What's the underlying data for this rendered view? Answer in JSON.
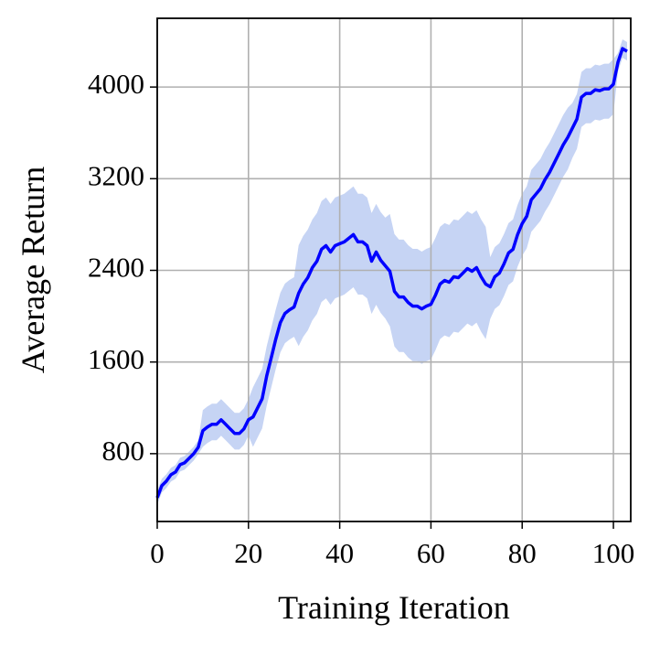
{
  "chart_data": {
    "type": "line",
    "xlabel": "Training Iteration",
    "ylabel": "Average Return",
    "x": [
      0,
      1,
      2,
      3,
      4,
      5,
      6,
      7,
      8,
      9,
      10,
      11,
      12,
      13,
      14,
      15,
      16,
      17,
      18,
      19,
      20,
      21,
      22,
      23,
      24,
      25,
      26,
      27,
      28,
      29,
      30,
      31,
      32,
      33,
      34,
      35,
      36,
      37,
      38,
      39,
      40,
      41,
      42,
      43,
      44,
      45,
      46,
      47,
      48,
      49,
      50,
      51,
      52,
      53,
      54,
      55,
      56,
      57,
      58,
      59,
      60,
      61,
      62,
      63,
      64,
      65,
      66,
      67,
      68,
      69,
      70,
      71,
      72,
      73,
      74,
      75,
      76,
      77,
      78,
      79,
      80,
      81,
      82,
      83,
      84,
      85,
      86,
      87,
      88,
      89,
      90,
      91,
      92,
      93,
      94,
      95,
      96,
      97,
      98,
      99,
      100,
      101,
      102,
      103
    ],
    "series": [
      {
        "color": "#0000ff",
        "values": [
          416,
          520,
          560,
          616,
          640,
          704,
          720,
          760,
          800,
          856,
          1000,
          1032,
          1056,
          1056,
          1096,
          1056,
          1016,
          976,
          976,
          1016,
          1096,
          1120,
          1200,
          1280,
          1480,
          1640,
          1800,
          1944,
          2024,
          2056,
          2080,
          2200,
          2280,
          2336,
          2424,
          2480,
          2584,
          2616,
          2560,
          2616,
          2632,
          2648,
          2680,
          2712,
          2648,
          2648,
          2616,
          2480,
          2560,
          2488,
          2440,
          2392,
          2216,
          2168,
          2168,
          2120,
          2088,
          2088,
          2064,
          2088,
          2104,
          2184,
          2280,
          2312,
          2296,
          2344,
          2336,
          2376,
          2416,
          2392,
          2424,
          2344,
          2280,
          2256,
          2344,
          2376,
          2456,
          2552,
          2584,
          2712,
          2808,
          2872,
          3016,
          3064,
          3112,
          3192,
          3256,
          3336,
          3416,
          3496,
          3560,
          3640,
          3720,
          3912,
          3944,
          3944,
          3976,
          3968,
          3984,
          3984,
          4024,
          4216,
          4336,
          4312
        ]
      }
    ],
    "band": {
      "color": "#c6d4f4",
      "upper": [
        476,
        580,
        620,
        676,
        700,
        764,
        780,
        820,
        860,
        916,
        1180,
        1212,
        1236,
        1236,
        1276,
        1236,
        1196,
        1156,
        1156,
        1196,
        1276,
        1380,
        1460,
        1540,
        1740,
        1900,
        2060,
        2204,
        2284,
        2316,
        2340,
        2620,
        2700,
        2756,
        2844,
        2900,
        3004,
        3036,
        2980,
        3036,
        3052,
        3068,
        3100,
        3132,
        3068,
        3068,
        3036,
        2900,
        2980,
        2908,
        2860,
        2892,
        2716,
        2668,
        2668,
        2620,
        2588,
        2588,
        2564,
        2588,
        2604,
        2684,
        2780,
        2812,
        2796,
        2844,
        2836,
        2876,
        2916,
        2892,
        2924,
        2844,
        2780,
        2516,
        2604,
        2636,
        2716,
        2812,
        2844,
        2972,
        3068,
        3132,
        3276,
        3324,
        3372,
        3452,
        3516,
        3596,
        3676,
        3756,
        3820,
        3860,
        3940,
        4132,
        4164,
        4164,
        4196,
        4188,
        4204,
        4204,
        4244,
        4296,
        4416,
        4392
      ],
      "lower": [
        356,
        460,
        500,
        556,
        580,
        644,
        660,
        700,
        740,
        796,
        860,
        892,
        916,
        916,
        956,
        916,
        876,
        836,
        836,
        876,
        956,
        860,
        940,
        1020,
        1220,
        1380,
        1540,
        1684,
        1764,
        1796,
        1820,
        1740,
        1820,
        1876,
        1964,
        2020,
        2124,
        2156,
        2100,
        2156,
        2172,
        2188,
        2220,
        2252,
        2188,
        2188,
        2156,
        2020,
        2100,
        2028,
        1980,
        1912,
        1736,
        1688,
        1688,
        1640,
        1608,
        1608,
        1584,
        1608,
        1624,
        1704,
        1800,
        1832,
        1816,
        1864,
        1856,
        1896,
        1936,
        1912,
        1944,
        1864,
        1800,
        1976,
        2064,
        2096,
        2176,
        2272,
        2304,
        2432,
        2528,
        2592,
        2736,
        2784,
        2832,
        2912,
        2976,
        3056,
        3136,
        3216,
        3280,
        3380,
        3460,
        3652,
        3684,
        3684,
        3716,
        3708,
        3724,
        3724,
        3764,
        4136,
        4256,
        4232
      ]
    },
    "xlim": [
      0,
      103.8
    ],
    "ylim": [
      208,
      4600
    ],
    "xticks": [
      0,
      20,
      40,
      60,
      80,
      100
    ],
    "yticks": [
      800,
      1600,
      2400,
      3200,
      4000
    ],
    "grid": true
  }
}
